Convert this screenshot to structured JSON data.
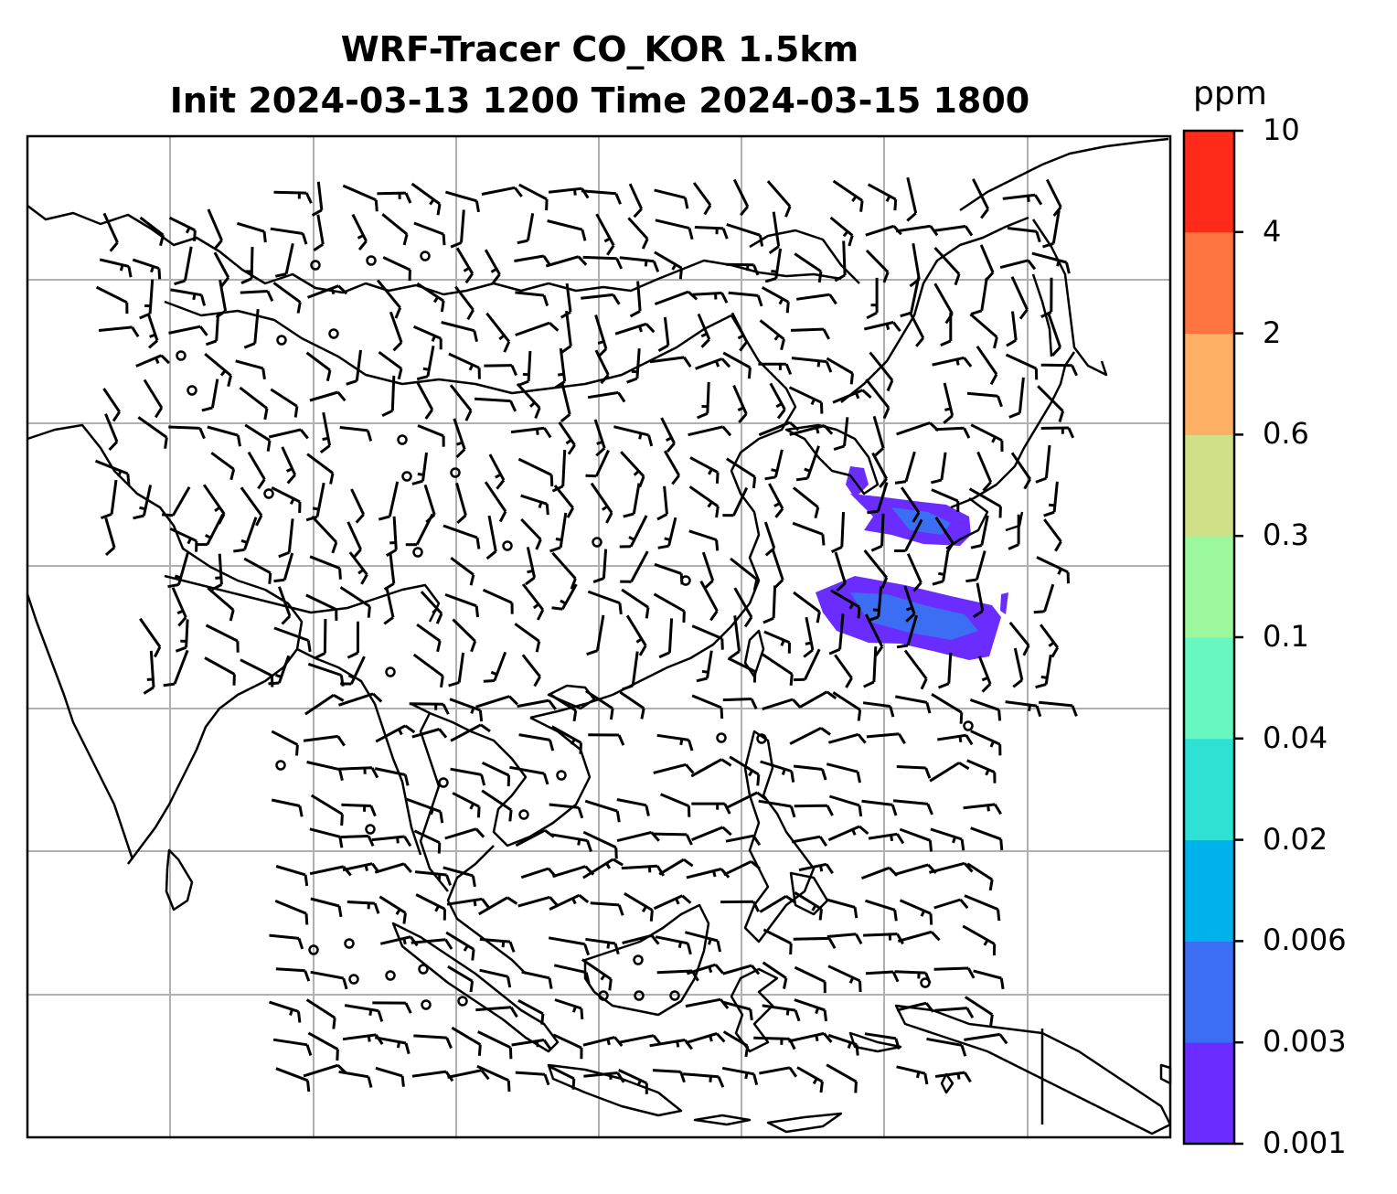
{
  "title": {
    "line1": "WRF-Tracer CO_KOR 1.5km",
    "line2": "Init 2024-03-13 1200 Time 2024-03-15 1800"
  },
  "colorbar": {
    "unit": "ppm",
    "ticks": [
      "0.001",
      "0.003",
      "0.006",
      "0.02",
      "0.04",
      "0.1",
      "0.3",
      "0.6",
      "2",
      "4",
      "10"
    ],
    "colors": [
      "#6a2cff",
      "#3b6ef2",
      "#00b2ec",
      "#2fe0d4",
      "#66f8c0",
      "#9cf89c",
      "#cfe088",
      "#fdb064",
      "#fe7540",
      "#ff2a1a"
    ]
  },
  "map": {
    "features": [
      "coastlines",
      "lat-lon gridlines",
      "wind barbs",
      "CO tracer concentration shading"
    ],
    "plume_colors": [
      "#6a2cff",
      "#3b6ef2"
    ]
  }
}
